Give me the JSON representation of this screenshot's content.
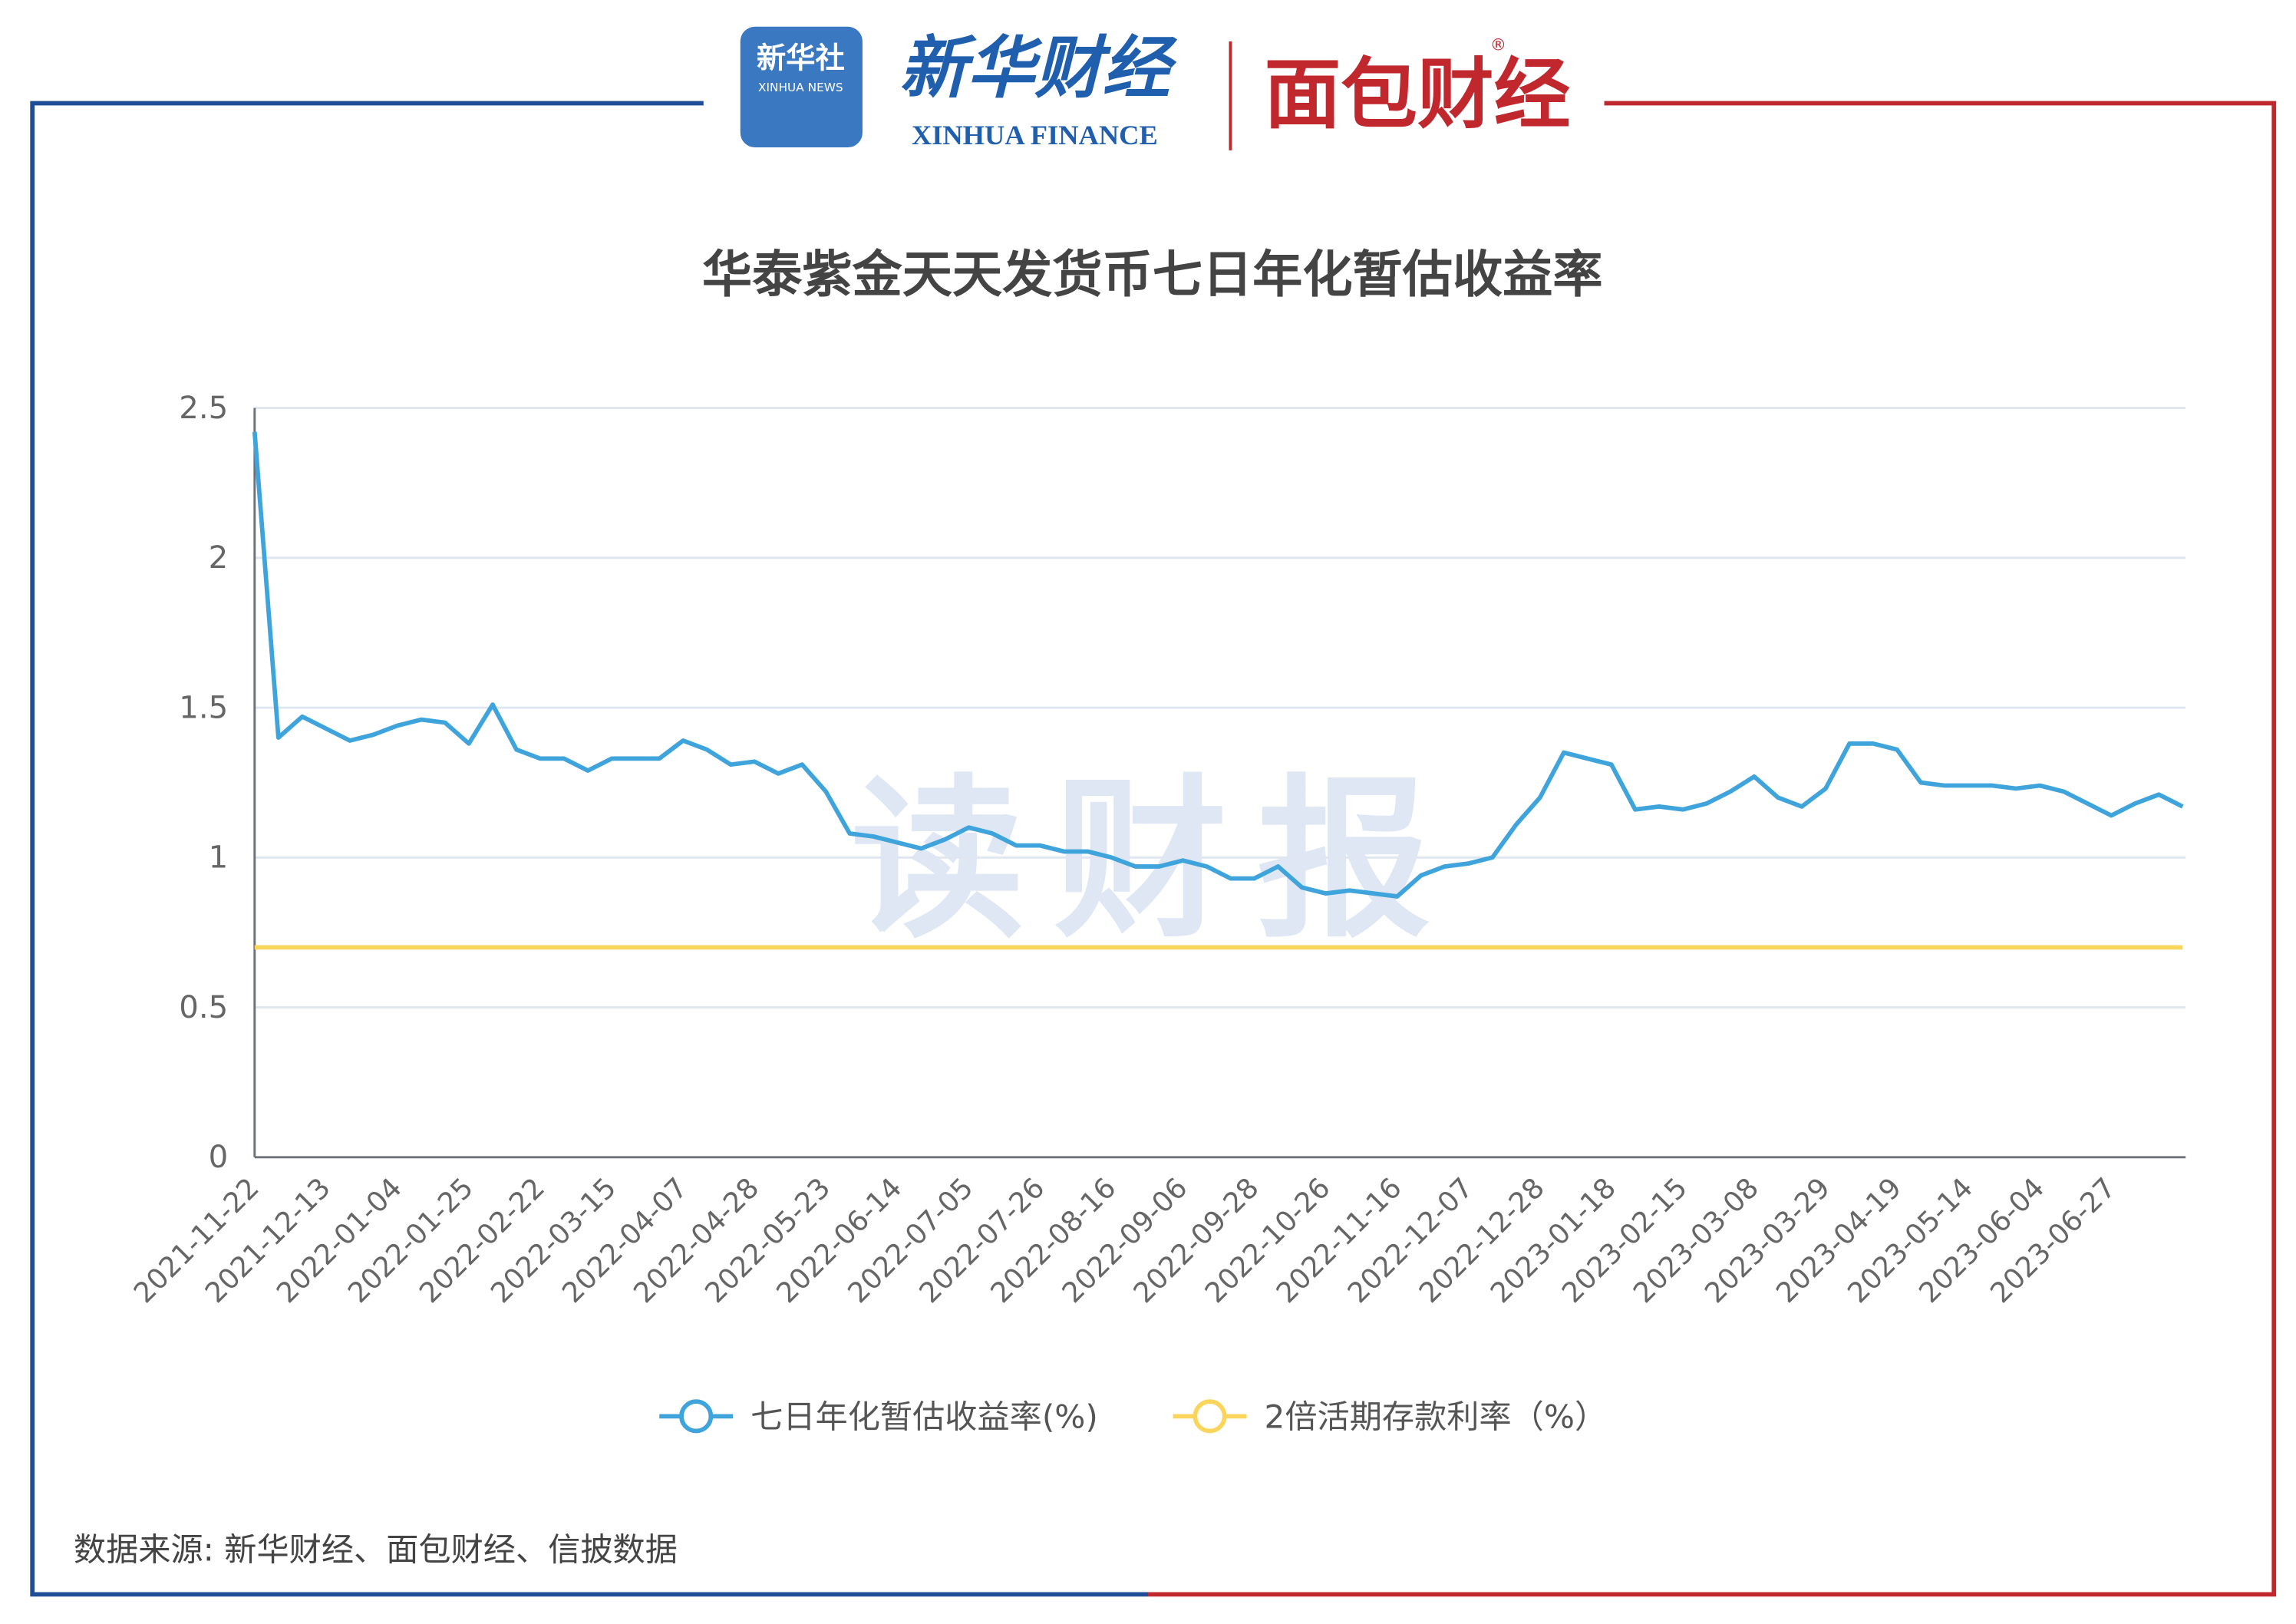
{
  "header": {
    "xinhua_logo": "新华社",
    "xinhua_logo_en": "XINHUA NEWS",
    "finance": "新华财经",
    "finance_en": "XINHUA FINANCE",
    "mianbao": "面包财经",
    "registered": "®"
  },
  "watermark": "读财报",
  "source": "数据来源: 新华财经、面包财经、信披数据",
  "chart_data": {
    "type": "line",
    "title": "华泰紫金天天发货币七日年化暂估收益率",
    "categories": [
      "2021-11-22",
      null,
      null,
      "2021-12-13",
      null,
      null,
      "2022-01-04",
      null,
      null,
      "2022-01-25",
      null,
      null,
      "2022-02-22",
      null,
      null,
      "2022-03-15",
      null,
      null,
      "2022-04-07",
      null,
      null,
      "2022-04-28",
      null,
      null,
      "2022-05-23",
      null,
      null,
      "2022-06-14",
      null,
      null,
      "2022-07-05",
      null,
      null,
      "2022-07-26",
      null,
      null,
      "2022-08-16",
      null,
      null,
      "2022-09-06",
      null,
      null,
      "2022-09-28",
      null,
      null,
      "2022-10-26",
      null,
      null,
      "2022-11-16",
      null,
      null,
      "2022-12-07",
      null,
      null,
      "2022-12-28",
      null,
      null,
      "2023-01-18",
      null,
      null,
      "2023-02-15",
      null,
      null,
      "2023-03-08",
      null,
      null,
      "2023-03-29",
      null,
      null,
      "2023-04-19",
      null,
      null,
      "2023-05-14",
      null,
      null,
      "2023-06-04",
      null,
      null,
      "2023-06-27",
      null,
      null,
      null
    ],
    "series": [
      {
        "name": "七日年化暂估收益率(%)",
        "color": "#3fa3dc",
        "values": [
          2.42,
          1.4,
          1.47,
          1.43,
          1.39,
          1.41,
          1.44,
          1.46,
          1.45,
          1.38,
          1.51,
          1.36,
          1.33,
          1.33,
          1.29,
          1.33,
          1.33,
          1.33,
          1.39,
          1.36,
          1.31,
          1.32,
          1.28,
          1.31,
          1.22,
          1.08,
          1.07,
          1.05,
          1.03,
          1.06,
          1.1,
          1.08,
          1.04,
          1.04,
          1.02,
          1.02,
          1.0,
          0.97,
          0.97,
          0.99,
          0.97,
          0.93,
          0.93,
          0.97,
          0.9,
          0.88,
          0.89,
          0.88,
          0.87,
          0.94,
          0.97,
          0.98,
          1.0,
          1.11,
          1.2,
          1.35,
          1.33,
          1.31,
          1.16,
          1.17,
          1.16,
          1.18,
          1.22,
          1.27,
          1.2,
          1.17,
          1.23,
          1.38,
          1.38,
          1.36,
          1.25,
          1.24,
          1.24,
          1.24,
          1.23,
          1.24,
          1.22,
          1.18,
          1.14,
          1.18,
          1.21,
          1.17
        ]
      },
      {
        "name": "2倍活期存款利率（%）",
        "color": "#fad55c",
        "values": [
          0.7,
          0.7,
          0.7,
          0.7,
          0.7,
          0.7,
          0.7,
          0.7,
          0.7,
          0.7,
          0.7,
          0.7,
          0.7,
          0.7,
          0.7,
          0.7,
          0.7,
          0.7,
          0.7,
          0.7,
          0.7,
          0.7,
          0.7,
          0.7,
          0.7,
          0.7,
          0.7,
          0.7,
          0.7,
          0.7,
          0.7,
          0.7,
          0.7,
          0.7,
          0.7,
          0.7,
          0.7,
          0.7,
          0.7,
          0.7,
          0.7,
          0.7,
          0.7,
          0.7,
          0.7,
          0.7,
          0.7,
          0.7,
          0.7,
          0.7,
          0.7,
          0.7,
          0.7,
          0.7,
          0.7,
          0.7,
          0.7,
          0.7,
          0.7,
          0.7,
          0.7,
          0.7,
          0.7,
          0.7,
          0.7,
          0.7,
          0.7,
          0.7,
          0.7,
          0.7,
          0.7,
          0.7,
          0.7,
          0.7,
          0.7,
          0.7,
          0.7,
          0.7,
          0.7,
          0.7,
          0.7,
          0.7
        ]
      }
    ],
    "ylim": [
      0,
      2.5
    ],
    "yticks": [
      0,
      0.5,
      1,
      1.5,
      2,
      2.5
    ],
    "grid": true
  }
}
